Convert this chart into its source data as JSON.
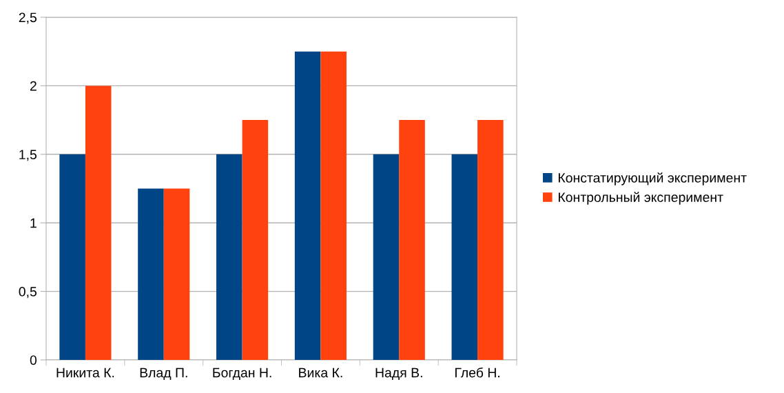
{
  "chart_data": {
    "type": "bar",
    "categories": [
      "Никита К.",
      "Влад П.",
      "Богдан Н.",
      "Вика К.",
      "Надя В.",
      "Глеб Н."
    ],
    "series": [
      {
        "name": "Констатирующий эксперимент",
        "color": "#004586",
        "values": [
          1.5,
          1.25,
          1.5,
          2.25,
          1.5,
          1.5
        ]
      },
      {
        "name": "Контрольный эксперимент",
        "color": "#ff420e",
        "values": [
          2,
          1.25,
          1.75,
          2.25,
          1.75,
          1.75
        ]
      }
    ],
    "ylim": [
      0,
      2.5
    ],
    "yticks": [
      0,
      {
        "value": 0.5,
        "label": "0,5"
      },
      1,
      {
        "value": 1.5,
        "label": "1,5"
      },
      2,
      {
        "value": 2.5,
        "label": "2,5"
      }
    ],
    "grid": "y",
    "legend": "right"
  }
}
